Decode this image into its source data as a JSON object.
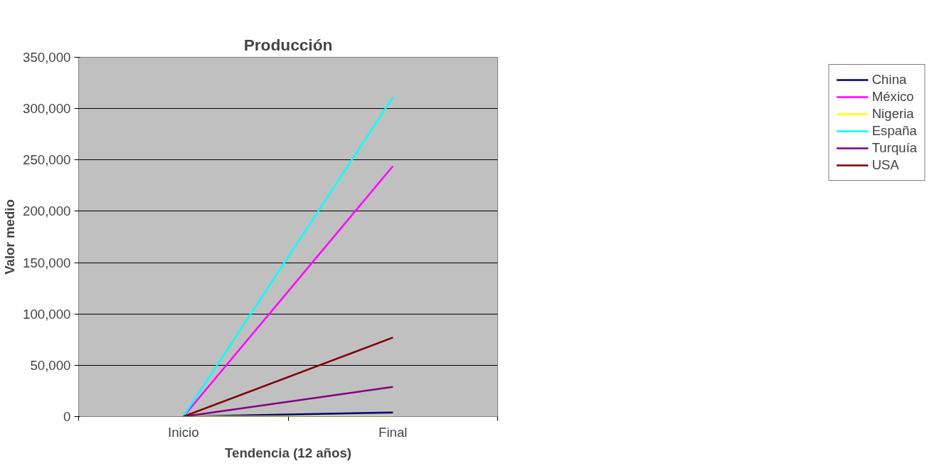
{
  "chart_data": {
    "type": "line",
    "title": "Producción",
    "xlabel": "Tendencia (12 años)",
    "ylabel": "Valor medio",
    "categories": [
      "Inicio",
      "Final"
    ],
    "series": [
      {
        "name": "China",
        "color": "#000080",
        "values": [
          0,
          4000
        ]
      },
      {
        "name": "México",
        "color": "#ff00ff",
        "values": [
          0,
          244000
        ]
      },
      {
        "name": "Nigeria",
        "color": "#ffff00",
        "values": [
          0,
          0
        ]
      },
      {
        "name": "España",
        "color": "#00ffff",
        "values": [
          0,
          311000
        ]
      },
      {
        "name": "Turquía",
        "color": "#800080",
        "values": [
          0,
          29000
        ]
      },
      {
        "name": "USA",
        "color": "#800000",
        "values": [
          0,
          77000
        ]
      }
    ],
    "ylim": [
      0,
      350000
    ],
    "yticks": [
      {
        "value": 0,
        "label": "0"
      },
      {
        "value": 50000,
        "label": "50,000"
      },
      {
        "value": 100000,
        "label": "100,000"
      },
      {
        "value": 150000,
        "label": "150,000"
      },
      {
        "value": 200000,
        "label": "200,000"
      },
      {
        "value": 250000,
        "label": "250,000"
      },
      {
        "value": 300000,
        "label": "300,000"
      },
      {
        "value": 350000,
        "label": "350,000"
      }
    ],
    "grid": "y",
    "legend": "right",
    "marker": "none",
    "line_style": "solid"
  }
}
